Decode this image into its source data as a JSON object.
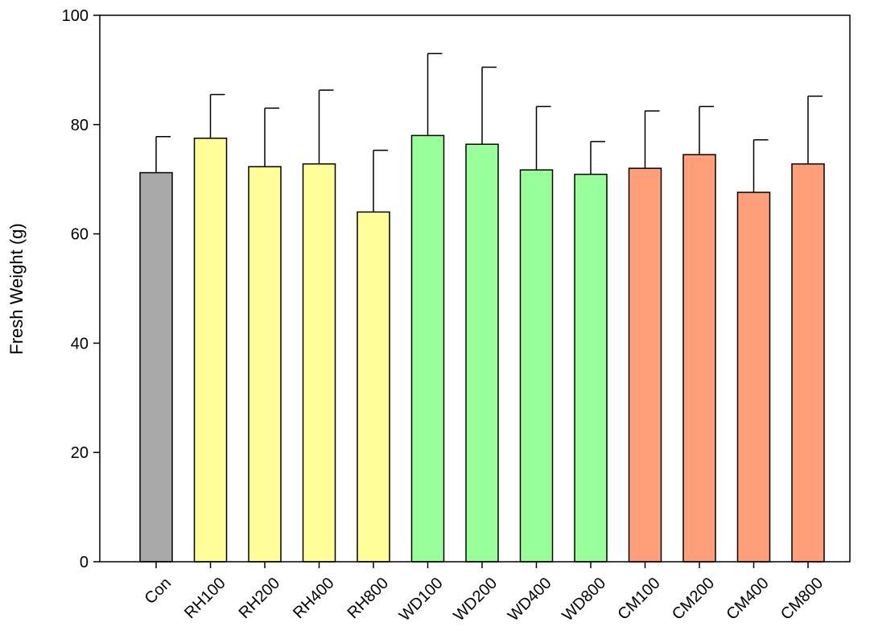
{
  "chart_data": {
    "type": "bar",
    "title": "",
    "xlabel": "",
    "ylabel": "Fresh Weight (g)",
    "ylim": [
      0,
      100
    ],
    "yticks": [
      0,
      20,
      40,
      60,
      80,
      100
    ],
    "grid": false,
    "categories": [
      "Con",
      "RH100",
      "RH200",
      "RH400",
      "RH800",
      "WD100",
      "WD200",
      "WD400",
      "WD800",
      "CM100",
      "CM200",
      "CM400",
      "CM800"
    ],
    "values": [
      71.2,
      77.5,
      72.3,
      72.8,
      64.0,
      78.0,
      76.4,
      71.7,
      70.9,
      72.0,
      74.5,
      67.6,
      72.8
    ],
    "error_upper": [
      6.6,
      8.0,
      10.7,
      13.5,
      11.3,
      15.0,
      14.1,
      11.6,
      6.0,
      10.5,
      8.8,
      9.6,
      12.4
    ],
    "colors": [
      "#a8a8a8",
      "#ffff99",
      "#ffff99",
      "#ffff99",
      "#ffff99",
      "#99ff99",
      "#99ff99",
      "#99ff99",
      "#99ff99",
      "#ffa07a",
      "#ffa07a",
      "#ffa07a",
      "#ffa07a"
    ]
  }
}
